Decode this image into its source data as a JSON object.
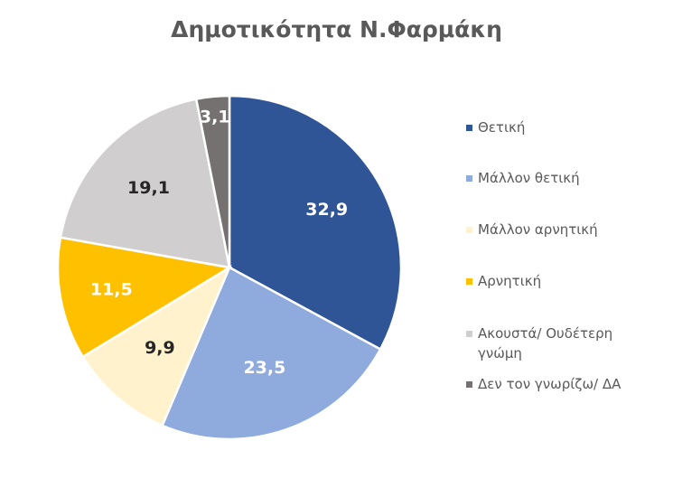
{
  "chart_data": {
    "type": "pie",
    "title": "Δημοτικότητα Ν.Φαρμάκη",
    "legend_position": "right",
    "slices": [
      {
        "label": "Θετική",
        "value": 32.9,
        "display": "32,9",
        "color": "#2F5597",
        "label_color": "#ffffff"
      },
      {
        "label": "Μάλλον θετική",
        "value": 23.5,
        "display": "23,5",
        "color": "#8FAADC",
        "label_color": "#ffffff"
      },
      {
        "label": "Μάλλον αρνητική",
        "value": 9.9,
        "display": "9,9",
        "color": "#FFF2CC",
        "label_color": "#262626"
      },
      {
        "label": "Αρνητική",
        "value": 11.5,
        "display": "11,5",
        "color": "#FFC000",
        "label_color": "#ffffff"
      },
      {
        "label": "Ακουστά/ Ουδέτερη γνώμη",
        "value": 19.1,
        "display": "19,1",
        "color": "#D0CECE",
        "label_color": "#262626"
      },
      {
        "label": "Δεν τον γνωρίζω/ ΔΑ",
        "value": 3.1,
        "display": "3,1",
        "color": "#767171",
        "label_color": "#ffffff"
      }
    ]
  }
}
